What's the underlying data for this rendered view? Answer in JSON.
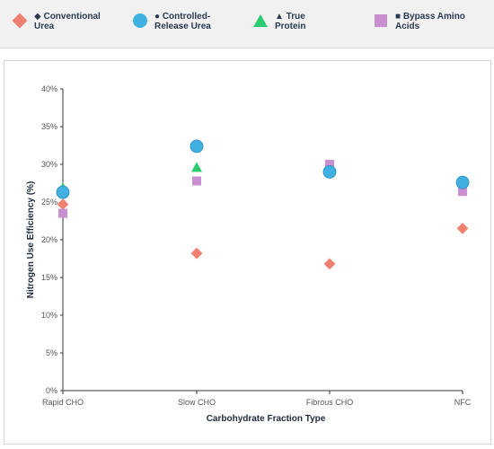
{
  "legend": [
    {
      "symbol": "diamond",
      "color": "#f08070",
      "label": "◆ Conventional Urea"
    },
    {
      "symbol": "circle",
      "color": "#3fb0e0",
      "label": "● Controlled-Release Urea"
    },
    {
      "symbol": "triangle",
      "color": "#2ecc71",
      "label": "▲ True Protein"
    },
    {
      "symbol": "square",
      "color": "#c98fd0",
      "label": "■ Bypass Amino Acids"
    }
  ],
  "chart_data": {
    "type": "scatter",
    "categories": [
      "Rapid CHO",
      "Slow CHO",
      "Fibrous CHO",
      "NFC"
    ],
    "xlabel": "Carbohydrate Fraction Type",
    "ylabel": "Nitrogen Use Efficiency (%)",
    "ylim": [
      0,
      40
    ],
    "yticks": [
      0,
      5,
      10,
      15,
      20,
      25,
      30,
      35,
      40
    ],
    "ytick_labels": [
      "0%",
      "5%",
      "10%",
      "15%",
      "20%",
      "25%",
      "30%",
      "35%",
      "40%"
    ],
    "grid": false,
    "legend_position": "top",
    "series": [
      {
        "name": "Conventional Urea",
        "symbol": "diamond",
        "color": "#f08070",
        "values": [
          24.7,
          18.2,
          16.8,
          21.5
        ]
      },
      {
        "name": "True Protein",
        "symbol": "triangle",
        "color": "#2ecc71",
        "values": [
          26.9,
          29.6,
          29.0,
          27.6
        ]
      },
      {
        "name": "Bypass Amino Acids",
        "symbol": "square",
        "color": "#c98fd0",
        "values": [
          23.5,
          27.8,
          30.0,
          26.4
        ]
      },
      {
        "name": "Controlled-Release Urea",
        "symbol": "circle",
        "color": "#3fb0e0",
        "values": [
          26.3,
          32.4,
          29.0,
          27.6
        ]
      }
    ]
  }
}
